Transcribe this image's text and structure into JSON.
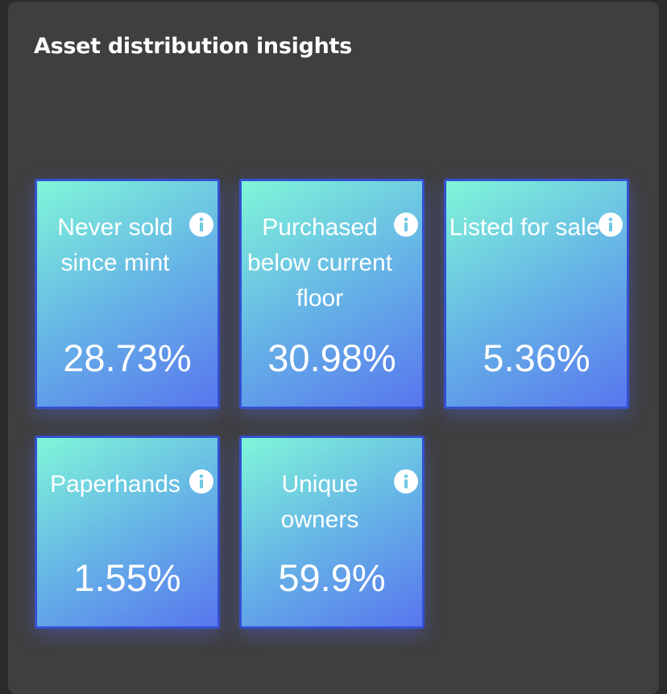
{
  "title": "Asset distribution insights",
  "cards": [
    {
      "label": "Never sold since mint",
      "value": "28.73%"
    },
    {
      "label": "Purchased below current floor",
      "value": "30.98%"
    },
    {
      "label": "Listed for sale",
      "value": "5.36%"
    },
    {
      "label": "Paperhands",
      "value": "1.55%"
    },
    {
      "label": "Unique owners",
      "value": "59.9%"
    }
  ]
}
